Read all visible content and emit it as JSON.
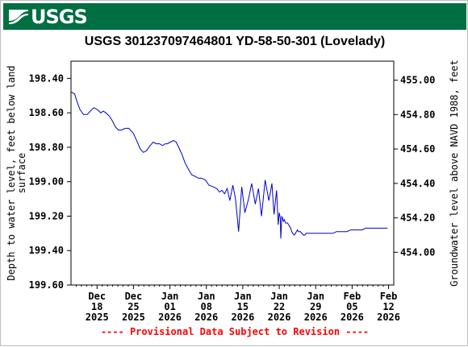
{
  "header": {
    "logo_text": "USGS",
    "brand_color": "#006f41"
  },
  "chart_data": {
    "type": "line",
    "title": "USGS 301237097464801 YD-58-50-301 (Lovelady)",
    "ylabel_left_line1": "Depth to water level, feet below land",
    "ylabel_left_line2": "surface",
    "ylabel_right": "Groundwater level above NAVD 1988, feet",
    "footer_note": "---- Provisional Data Subject to Revision ----",
    "line_color": "#0000cc",
    "grid": false,
    "y_left": {
      "min": 198.3,
      "max": 199.6,
      "inverted": true,
      "ticks": [
        "198.40",
        "198.60",
        "198.80",
        "199.00",
        "199.20",
        "199.40",
        "199.60"
      ]
    },
    "y_right": {
      "ticks": [
        "455.00",
        "454.80",
        "454.60",
        "454.40",
        "454.20",
        "454.00"
      ]
    },
    "x_ticks": [
      {
        "day": 0,
        "line1": "Dec",
        "line2": "18",
        "line3": "2025"
      },
      {
        "day": 7,
        "line1": "Dec",
        "line2": "25",
        "line3": "2025"
      },
      {
        "day": 14,
        "line1": "Jan",
        "line2": "01",
        "line3": "2026"
      },
      {
        "day": 21,
        "line1": "Jan",
        "line2": "08",
        "line3": "2026"
      },
      {
        "day": 28,
        "line1": "Jan",
        "line2": "15",
        "line3": "2026"
      },
      {
        "day": 35,
        "line1": "Jan",
        "line2": "22",
        "line3": "2026"
      },
      {
        "day": 42,
        "line1": "Jan",
        "line2": "29",
        "line3": "2026"
      },
      {
        "day": 49,
        "line1": "Feb",
        "line2": "05",
        "line3": "2026"
      },
      {
        "day": 56,
        "line1": "Feb",
        "line2": "12",
        "line3": "2026"
      }
    ],
    "series": [
      {
        "x": [
          -4.9,
          -4.3,
          -3.9,
          -3.3,
          -2.6,
          -1.9,
          -1.3,
          -0.6,
          0.0,
          0.4,
          0.7,
          1.2,
          1.7,
          2.4,
          3.0,
          3.5,
          4.1,
          4.7,
          5.4,
          6.1,
          7.0,
          7.6,
          8.3,
          8.9,
          9.5,
          10.2,
          10.8,
          11.4,
          12.0,
          12.6,
          13.1,
          13.5,
          14.1,
          14.7,
          15.2,
          15.7,
          16.3,
          16.9,
          17.6,
          18.2,
          18.9,
          19.5,
          20.1,
          20.8,
          21.5,
          22.3,
          23.0,
          23.5,
          24.0,
          24.5,
          25.0,
          25.5,
          26.1,
          26.6,
          27.2,
          27.8,
          28.4,
          29.1,
          29.7,
          30.4,
          31.0,
          31.6,
          32.3,
          33.0,
          33.6,
          34.0,
          34.5,
          34.8,
          35.0,
          35.2,
          35.3,
          35.5,
          35.7,
          35.8,
          36.0,
          36.2,
          36.4,
          36.6,
          36.8,
          37.0,
          37.2,
          37.4,
          37.6,
          37.9,
          38.1,
          38.3,
          38.5,
          38.7,
          38.9,
          39.1,
          39.3,
          39.4,
          39.6,
          39.9,
          40.2,
          40.6,
          41.2,
          41.9,
          42.6,
          43.3,
          44.0,
          44.6,
          45.3,
          46.0,
          46.7,
          47.4,
          48.0,
          48.7,
          49.4,
          50.2,
          50.9,
          51.6,
          52.2,
          52.9,
          53.7,
          54.5,
          55.2,
          55.8
        ],
        "y": [
          198.48,
          198.49,
          198.53,
          198.58,
          198.61,
          198.61,
          198.59,
          198.57,
          198.58,
          198.59,
          198.6,
          198.59,
          198.6,
          198.62,
          198.65,
          198.68,
          198.7,
          198.7,
          198.69,
          198.69,
          198.72,
          198.76,
          198.81,
          198.83,
          198.82,
          198.79,
          198.77,
          198.78,
          198.78,
          198.79,
          198.78,
          198.78,
          198.77,
          198.76,
          198.77,
          198.8,
          198.84,
          198.89,
          198.93,
          198.96,
          198.97,
          198.98,
          198.98,
          198.99,
          199.02,
          199.03,
          199.04,
          199.06,
          199.05,
          199.07,
          199.04,
          199.11,
          199.02,
          199.1,
          199.29,
          199.03,
          199.18,
          199.1,
          199.01,
          199.13,
          199.04,
          199.2,
          198.99,
          199.11,
          199.01,
          199.19,
          199.05,
          199.25,
          199.18,
          199.21,
          199.33,
          199.2,
          199.22,
          199.23,
          199.22,
          199.24,
          199.24,
          199.24,
          199.25,
          199.26,
          199.27,
          199.29,
          199.3,
          199.31,
          199.3,
          199.29,
          199.28,
          199.29,
          199.29,
          199.29,
          199.3,
          199.3,
          199.31,
          199.31,
          199.3,
          199.3,
          199.3,
          199.3,
          199.3,
          199.3,
          199.3,
          199.3,
          199.3,
          199.29,
          199.29,
          199.29,
          199.29,
          199.28,
          199.28,
          199.28,
          199.28,
          199.27,
          199.27,
          199.27,
          199.27,
          199.27,
          199.27,
          199.27
        ]
      }
    ]
  }
}
